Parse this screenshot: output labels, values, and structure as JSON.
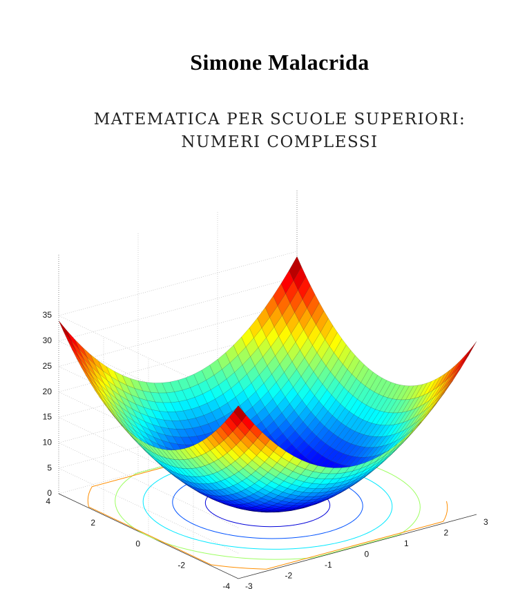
{
  "author": "Simone Malacrida",
  "title": [
    "MATEMATICA PER SCUOLE SUPERIORI:",
    "NUMERI COMPLESSI"
  ],
  "plot": {
    "z_ticks": [
      0,
      5,
      10,
      15,
      20,
      25,
      30,
      35
    ],
    "y_ticks": [
      4,
      2,
      0,
      -2,
      -4
    ],
    "x_ticks": [
      -3,
      -2,
      -1,
      0,
      1,
      2,
      3
    ]
  }
}
